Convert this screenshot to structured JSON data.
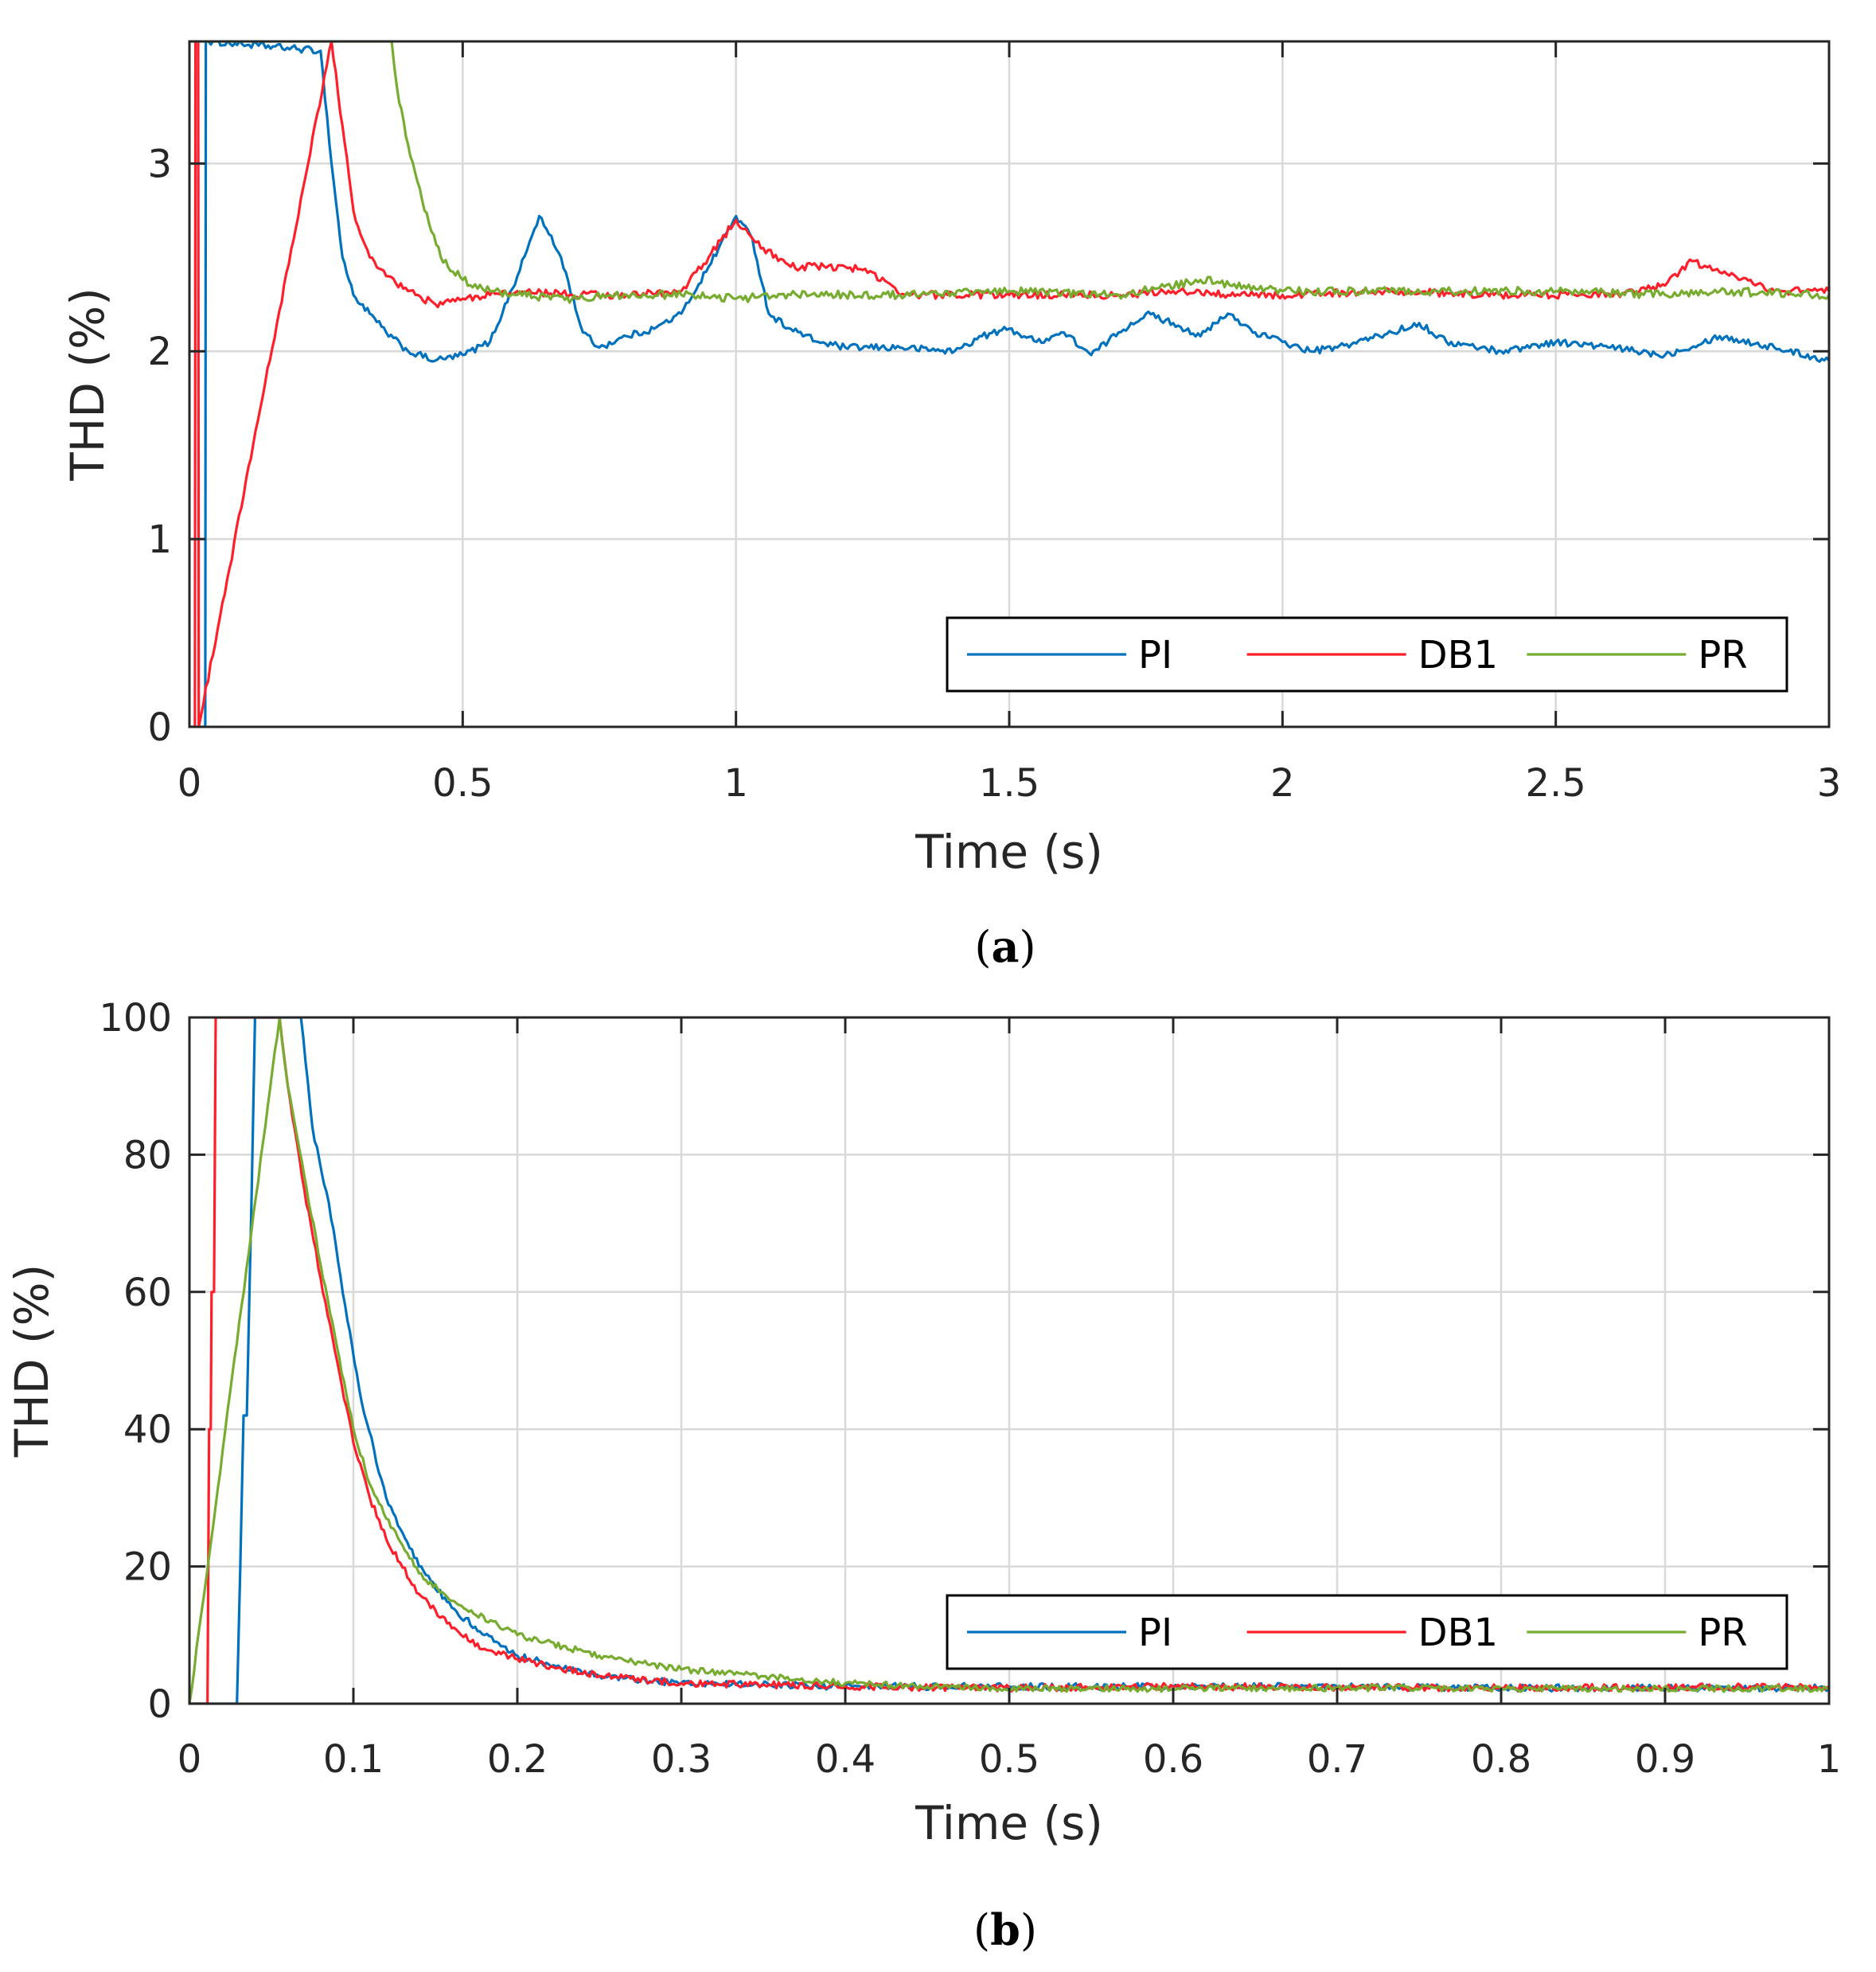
{
  "colors": {
    "PI": "#0072bd",
    "DB1": "#ff1f2b",
    "PR": "#77ac30"
  },
  "chart_data": [
    {
      "id": "a",
      "type": "line",
      "caption": "a",
      "xlabel": "Time (s)",
      "ylabel": "THD (%)",
      "xlim": [
        0,
        3
      ],
      "ylim": [
        0,
        3.65
      ],
      "xticks": [
        0,
        0.5,
        1,
        1.5,
        2,
        2.5,
        3
      ],
      "xtick_labels": [
        "0",
        "0.5",
        "1",
        "1.5",
        "2",
        "2.5",
        "3"
      ],
      "yticks": [
        0,
        1,
        2,
        3
      ],
      "ytick_labels": [
        "0",
        "1",
        "2",
        "3"
      ],
      "grid": true,
      "legend": {
        "position": "bottom-right",
        "orientation": "horizontal",
        "entries": [
          "PI",
          "DB1",
          "PR"
        ]
      },
      "series": [
        {
          "name": "PI",
          "noise": 0.018,
          "x": [
            0,
            0.029,
            0.03,
            0.035,
            0.24,
            0.26,
            0.28,
            0.3,
            0.33,
            0.36,
            0.4,
            0.45,
            0.5,
            0.55,
            0.6,
            0.64,
            0.68,
            0.72,
            0.75,
            0.8,
            0.85,
            0.9,
            0.95,
            1.0,
            1.03,
            1.06,
            1.1,
            1.15,
            1.2,
            1.3,
            1.4,
            1.45,
            1.5,
            1.55,
            1.6,
            1.65,
            1.7,
            1.75,
            1.8,
            1.85,
            1.9,
            1.95,
            2.0,
            2.05,
            2.1,
            2.2,
            2.25,
            2.3,
            2.4,
            2.5,
            2.6,
            2.7,
            2.8,
            2.9,
            3.0
          ],
          "y": [
            0,
            0,
            3.65,
            3.65,
            3.6,
            3.0,
            2.5,
            2.3,
            2.2,
            2.1,
            2.0,
            1.95,
            1.98,
            2.05,
            2.4,
            2.72,
            2.5,
            2.1,
            2.02,
            2.08,
            2.12,
            2.2,
            2.45,
            2.72,
            2.6,
            2.2,
            2.12,
            2.05,
            2.02,
            2.02,
            2.0,
            2.08,
            2.12,
            2.05,
            2.1,
            1.98,
            2.1,
            2.2,
            2.15,
            2.08,
            2.2,
            2.1,
            2.05,
            2.0,
            2.02,
            2.1,
            2.15,
            2.05,
            2.0,
            2.05,
            2.02,
            1.98,
            2.08,
            2.02,
            1.95
          ]
        },
        {
          "name": "DB1",
          "noise": 0.02,
          "x": [
            0,
            0.01,
            0.011,
            0.016,
            0.017,
            0.26,
            0.28,
            0.3,
            0.33,
            0.36,
            0.4,
            0.45,
            0.5,
            0.55,
            0.6,
            0.7,
            0.8,
            0.9,
            0.95,
            1.0,
            1.05,
            1.1,
            1.2,
            1.25,
            1.3,
            1.4,
            1.5,
            1.6,
            1.7,
            1.8,
            1.9,
            2.0,
            2.2,
            2.4,
            2.6,
            2.7,
            2.75,
            2.8,
            2.9,
            3.0
          ],
          "y": [
            0,
            0,
            3.65,
            3.65,
            0,
            3.65,
            3.2,
            2.75,
            2.5,
            2.4,
            2.32,
            2.25,
            2.28,
            2.3,
            2.32,
            2.3,
            2.3,
            2.32,
            2.5,
            2.7,
            2.55,
            2.45,
            2.45,
            2.42,
            2.3,
            2.3,
            2.3,
            2.3,
            2.3,
            2.32,
            2.3,
            2.3,
            2.32,
            2.3,
            2.3,
            2.35,
            2.48,
            2.42,
            2.32,
            2.32
          ]
        },
        {
          "name": "PR",
          "noise": 0.022,
          "x": [
            0,
            0.37,
            0.38,
            0.4,
            0.43,
            0.46,
            0.5,
            0.55,
            0.6,
            0.7,
            0.8,
            0.9,
            1.0,
            1.1,
            1.2,
            1.3,
            1.5,
            1.7,
            1.85,
            2.0,
            2.3,
            2.5,
            2.7,
            2.8,
            3.0
          ],
          "y": [
            3.65,
            3.65,
            3.4,
            3.1,
            2.75,
            2.5,
            2.38,
            2.32,
            2.3,
            2.28,
            2.3,
            2.3,
            2.28,
            2.3,
            2.3,
            2.3,
            2.32,
            2.3,
            2.38,
            2.32,
            2.32,
            2.32,
            2.3,
            2.32,
            2.3
          ]
        }
      ]
    },
    {
      "id": "b",
      "type": "line",
      "caption": "b",
      "xlabel": "Time (s)",
      "ylabel": "THD (%)",
      "xlim": [
        0,
        1
      ],
      "ylim": [
        0,
        100
      ],
      "xticks": [
        0,
        0.1,
        0.2,
        0.3,
        0.4,
        0.5,
        0.6,
        0.7,
        0.8,
        0.9,
        1
      ],
      "xtick_labels": [
        "0",
        "0.1",
        "0.2",
        "0.3",
        "0.4",
        "0.5",
        "0.6",
        "0.7",
        "0.8",
        "0.9",
        "1"
      ],
      "yticks": [
        0,
        20,
        40,
        60,
        80,
        100
      ],
      "ytick_labels": [
        "0",
        "20",
        "40",
        "60",
        "80",
        "100"
      ],
      "grid": true,
      "legend": {
        "position": "bottom-right",
        "orientation": "horizontal",
        "entries": [
          "PI",
          "DB1",
          "PR"
        ]
      },
      "series": [
        {
          "name": "PI",
          "noise": 0.5,
          "x": [
            0,
            0.029,
            0.031,
            0.033,
            0.035,
            0.038,
            0.04,
            0.045,
            0.05,
            0.055,
            0.06,
            0.065,
            0.068,
            0.075,
            0.085,
            0.095,
            0.105,
            0.12,
            0.14,
            0.16,
            0.18,
            0.2,
            0.25,
            0.3,
            0.4,
            0.5,
            0.6,
            0.7,
            0.8,
            1.0
          ],
          "y": [
            0,
            0,
            20,
            42,
            42,
            75,
            100,
            100,
            100,
            100,
            100,
            100,
            100,
            84,
            73,
            58,
            44,
            30,
            20,
            14,
            10,
            7,
            4,
            3,
            2.5,
            2.5,
            2.5,
            2.5,
            2.3,
            2.3
          ]
        },
        {
          "name": "DB1",
          "noise": 0.5,
          "x": [
            0,
            0.011,
            0.012,
            0.013,
            0.0135,
            0.015,
            0.016,
            0.055,
            0.06,
            0.07,
            0.08,
            0.09,
            0.1,
            0.11,
            0.12,
            0.14,
            0.16,
            0.18,
            0.2,
            0.25,
            0.3,
            0.4,
            0.5,
            0.6,
            0.8,
            1.0
          ],
          "y": [
            0,
            0,
            40,
            40,
            60,
            60,
            100,
            100,
            90,
            75,
            62,
            50,
            38,
            30,
            24,
            16,
            11,
            8,
            6.5,
            4,
            3,
            2.5,
            2.3,
            2.5,
            2.3,
            2.5
          ]
        },
        {
          "name": "PR",
          "noise": 0.45,
          "x": [
            0,
            0.055,
            0.06,
            0.07,
            0.08,
            0.09,
            0.1,
            0.11,
            0.12,
            0.14,
            0.16,
            0.2,
            0.25,
            0.3,
            0.35,
            0.4,
            0.45,
            0.5,
            0.6,
            0.7,
            0.8,
            1.0
          ],
          "y": [
            0,
            100,
            90,
            77,
            64,
            52,
            40,
            32,
            27,
            19,
            15,
            10,
            7,
            5,
            4,
            3,
            2.5,
            2.2,
            2.2,
            2.3,
            2.2,
            2.2
          ]
        }
      ]
    }
  ]
}
